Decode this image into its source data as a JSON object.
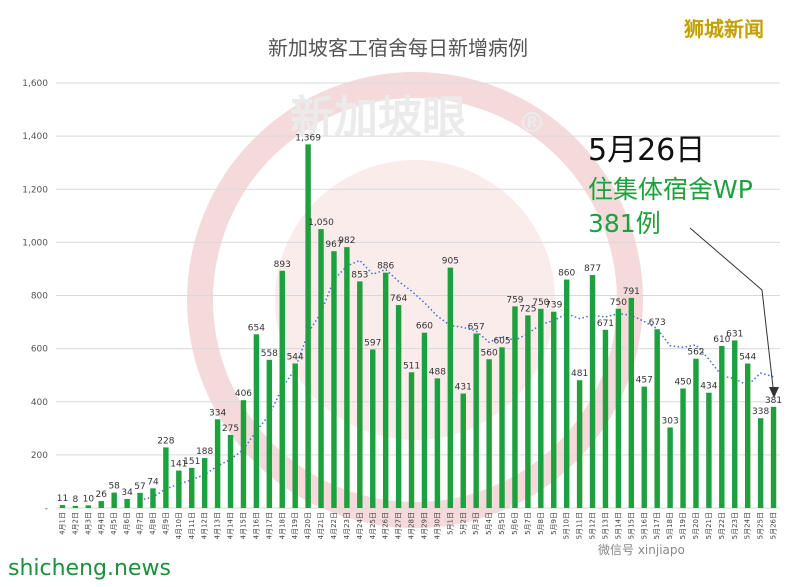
{
  "brand_tag": "狮城新闻",
  "site_label": "shicheng.news",
  "watermark": {
    "text": "新加坡眼",
    "registered": "®",
    "wechat_text": "微信号 xinjiapo"
  },
  "annotation": {
    "date": "5月26日",
    "line1": "住集体宿舍WP",
    "line2": "381例"
  },
  "colors": {
    "bar": "#1ea03e",
    "avg_line": "#3b6fd6",
    "grid": "#d9d9d9",
    "annotation_green": "#1ea03e",
    "brand": "#c4a000"
  },
  "chart_data": {
    "type": "bar",
    "title": "新加坡客工宿舍每日新增病例",
    "xlabel": "",
    "ylabel": "",
    "ylim": [
      0,
      1600
    ],
    "yticks": [
      0,
      200,
      400,
      600,
      800,
      1000,
      1200,
      1400,
      1600
    ],
    "ytick_labels": [
      "-",
      "200",
      "400",
      "600",
      "800",
      "1,000",
      "1,200",
      "1,400",
      "1,600"
    ],
    "grid": true,
    "legend": "none",
    "categories": [
      "4月1日",
      "4月2日",
      "4月3日",
      "4月4日",
      "4月5日",
      "4月6日",
      "4月7日",
      "4月8日",
      "4月9日",
      "4月10日",
      "4月11日",
      "4月12日",
      "4月13日",
      "4月14日",
      "4月15日",
      "4月16日",
      "4月17日",
      "4月18日",
      "4月19日",
      "4月20日",
      "4月21日",
      "4月22日",
      "4月23日",
      "4月24日",
      "4月25日",
      "4月26日",
      "4月27日",
      "4月28日",
      "4月29日",
      "4月30日",
      "5月1日",
      "5月2日",
      "5月3日",
      "5月4日",
      "5月5日",
      "5月6日",
      "5月7日",
      "5月8日",
      "5月9日",
      "5月10日",
      "5月11日",
      "5月12日",
      "5月13日",
      "5月14日",
      "5月15日",
      "5月16日",
      "5月17日",
      "5月18日",
      "5月19日",
      "5月20日",
      "5月21日",
      "5月22日",
      "5月23日",
      "5月24日",
      "5月25日",
      "5月26日"
    ],
    "series": [
      {
        "type": "bar",
        "values": [
          11,
          8,
          10,
          26,
          58,
          34,
          57,
          74,
          228,
          141,
          151,
          188,
          334,
          275,
          406,
          654,
          558,
          893,
          544,
          1369,
          1050,
          967,
          982,
          853,
          597,
          886,
          764,
          511,
          660,
          488,
          905,
          431,
          657,
          560,
          605,
          759,
          725,
          750,
          739,
          860,
          481,
          877,
          671,
          750,
          791,
          457,
          673,
          303,
          450,
          562,
          434,
          610,
          631,
          544,
          338,
          381
        ],
        "labels": [
          "11",
          "8",
          "10",
          "26",
          "58",
          "34",
          "57",
          "74",
          "228",
          "141",
          "151",
          "188",
          "334",
          "275",
          "406",
          "654",
          "558",
          "893",
          "544",
          "1,369",
          "1,050",
          "967",
          "982",
          "853",
          "597",
          "886",
          "764",
          "511",
          "660",
          "488",
          "905",
          "431",
          "657",
          "560",
          "605",
          "759",
          "725",
          "750",
          "739",
          "860",
          "481",
          "877",
          "671",
          "750",
          "791",
          "457",
          "673",
          "303",
          "450",
          "562",
          "434",
          "610",
          "631",
          "544",
          "338",
          "381"
        ]
      },
      {
        "type": "line",
        "style": "dotted",
        "values": [
          null,
          null,
          null,
          null,
          null,
          null,
          30,
          41,
          72,
          90,
          106,
          126,
          158,
          183,
          221,
          290,
          351,
          452,
          524,
          659,
          735,
          860,
          911,
          932,
          880,
          898,
          853,
          817,
          773,
          722,
          687,
          680,
          666,
          624,
          646,
          631,
          657,
          691,
          706,
          731,
          713,
          726,
          719,
          732,
          725,
          702,
          675,
          611,
          605,
          614,
          560,
          498,
          486,
          462,
          508,
          494
        ]
      }
    ]
  }
}
